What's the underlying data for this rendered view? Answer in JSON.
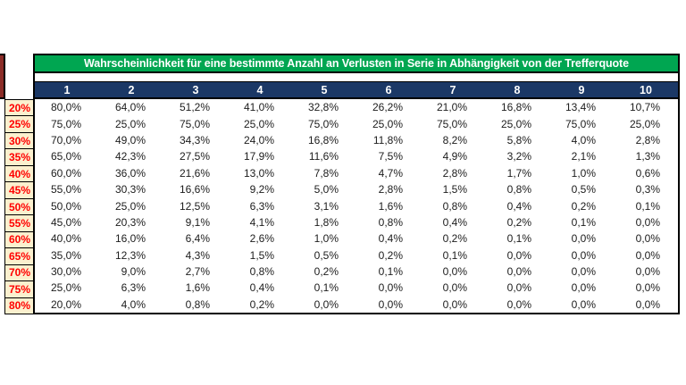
{
  "title_bar": {
    "text": "Wahrscheinlichkeit für eine bestimmte Anzahl an Verlusten in Serie in Abhängigkeit von der Trefferquote"
  },
  "table": {
    "column_headers": [
      "1",
      "2",
      "3",
      "4",
      "5",
      "6",
      "7",
      "8",
      "9",
      "10"
    ],
    "rows": [
      {
        "label": "20%",
        "values": [
          "80,0%",
          "64,0%",
          "51,2%",
          "41,0%",
          "32,8%",
          "26,2%",
          "21,0%",
          "16,8%",
          "13,4%",
          "10,7%"
        ]
      },
      {
        "label": "25%",
        "values": [
          "75,0%",
          "25,0%",
          "75,0%",
          "25,0%",
          "75,0%",
          "25,0%",
          "75,0%",
          "25,0%",
          "75,0%",
          "25,0%"
        ]
      },
      {
        "label": "30%",
        "values": [
          "70,0%",
          "49,0%",
          "34,3%",
          "24,0%",
          "16,8%",
          "11,8%",
          "8,2%",
          "5,8%",
          "4,0%",
          "2,8%"
        ]
      },
      {
        "label": "35%",
        "values": [
          "65,0%",
          "42,3%",
          "27,5%",
          "17,9%",
          "11,6%",
          "7,5%",
          "4,9%",
          "3,2%",
          "2,1%",
          "1,3%"
        ]
      },
      {
        "label": "40%",
        "values": [
          "60,0%",
          "36,0%",
          "21,6%",
          "13,0%",
          "7,8%",
          "4,7%",
          "2,8%",
          "1,7%",
          "1,0%",
          "0,6%"
        ]
      },
      {
        "label": "45%",
        "values": [
          "55,0%",
          "30,3%",
          "16,6%",
          "9,2%",
          "5,0%",
          "2,8%",
          "1,5%",
          "0,8%",
          "0,5%",
          "0,3%"
        ]
      },
      {
        "label": "50%",
        "values": [
          "50,0%",
          "25,0%",
          "12,5%",
          "6,3%",
          "3,1%",
          "1,6%",
          "0,8%",
          "0,4%",
          "0,2%",
          "0,1%"
        ]
      },
      {
        "label": "55%",
        "values": [
          "45,0%",
          "20,3%",
          "9,1%",
          "4,1%",
          "1,8%",
          "0,8%",
          "0,4%",
          "0,2%",
          "0,1%",
          "0,0%"
        ]
      },
      {
        "label": "60%",
        "values": [
          "40,0%",
          "16,0%",
          "6,4%",
          "2,6%",
          "1,0%",
          "0,4%",
          "0,2%",
          "0,1%",
          "0,0%",
          "0,0%"
        ]
      },
      {
        "label": "65%",
        "values": [
          "35,0%",
          "12,3%",
          "4,3%",
          "1,5%",
          "0,5%",
          "0,2%",
          "0,1%",
          "0,0%",
          "0,0%",
          "0,0%"
        ]
      },
      {
        "label": "70%",
        "values": [
          "30,0%",
          "9,0%",
          "2,7%",
          "0,8%",
          "0,2%",
          "0,1%",
          "0,0%",
          "0,0%",
          "0,0%",
          "0,0%"
        ]
      },
      {
        "label": "75%",
        "values": [
          "25,0%",
          "6,3%",
          "1,6%",
          "0,4%",
          "0,1%",
          "0,0%",
          "0,0%",
          "0,0%",
          "0,0%",
          "0,0%"
        ]
      },
      {
        "label": "80%",
        "values": [
          "20,0%",
          "4,0%",
          "0,8%",
          "0,2%",
          "0,0%",
          "0,0%",
          "0,0%",
          "0,0%",
          "0,0%",
          "0,0%"
        ]
      }
    ]
  },
  "colors": {
    "green": "#00A651",
    "navy": "#1B3866",
    "label_bg": "#FBF0CE",
    "label_text": "#FF0000",
    "maroon": "#8B2C27"
  }
}
